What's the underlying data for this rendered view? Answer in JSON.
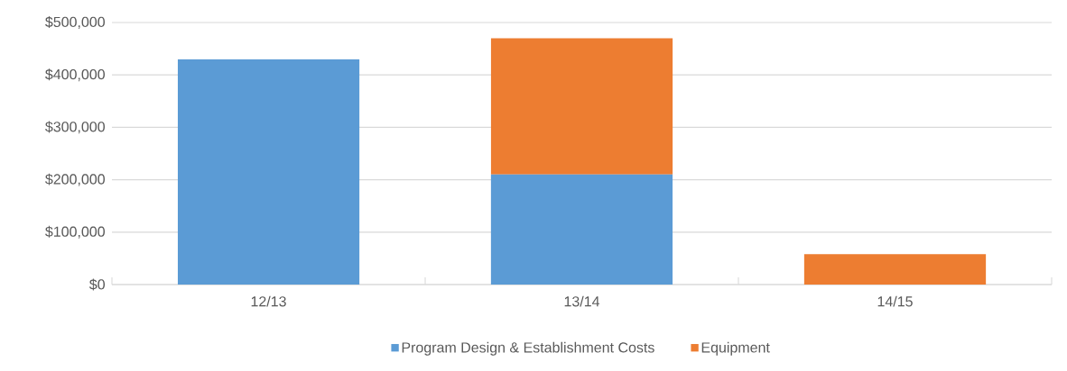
{
  "chart_data": {
    "type": "bar",
    "stacked": true,
    "categories": [
      "12/13",
      "13/14",
      "14/15"
    ],
    "series": [
      {
        "name": "Program Design & Establishment Costs",
        "color": "#5b9bd5",
        "values": [
          430000,
          210000,
          null
        ]
      },
      {
        "name": "Equipment",
        "color": "#ed7d31",
        "values": [
          null,
          260000,
          58000
        ]
      }
    ],
    "ylim": [
      0,
      500000
    ],
    "yticks": [
      {
        "value": 0,
        "label": "$0"
      },
      {
        "value": 100000,
        "label": "$100,000"
      },
      {
        "value": 200000,
        "label": "$200,000"
      },
      {
        "value": 300000,
        "label": "$300,000"
      },
      {
        "value": 400000,
        "label": "$400,000"
      },
      {
        "value": 500000,
        "label": "$500,000"
      }
    ],
    "grid": "y",
    "legend": "bottom"
  }
}
